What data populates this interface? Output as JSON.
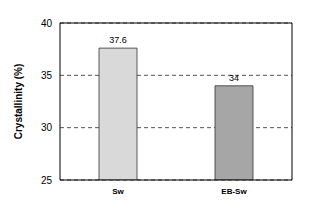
{
  "chart_data": {
    "type": "bar",
    "categories": [
      "Sw",
      "EB-Sw"
    ],
    "values": [
      37.6,
      34
    ],
    "colors": [
      "#d9d9d9",
      "#a6a6a6"
    ],
    "ylabel": "Crystallinity (%)",
    "ylim": [
      25,
      40
    ],
    "yticks": [
      25,
      30,
      35,
      40
    ],
    "grid": true,
    "data_labels": true
  }
}
